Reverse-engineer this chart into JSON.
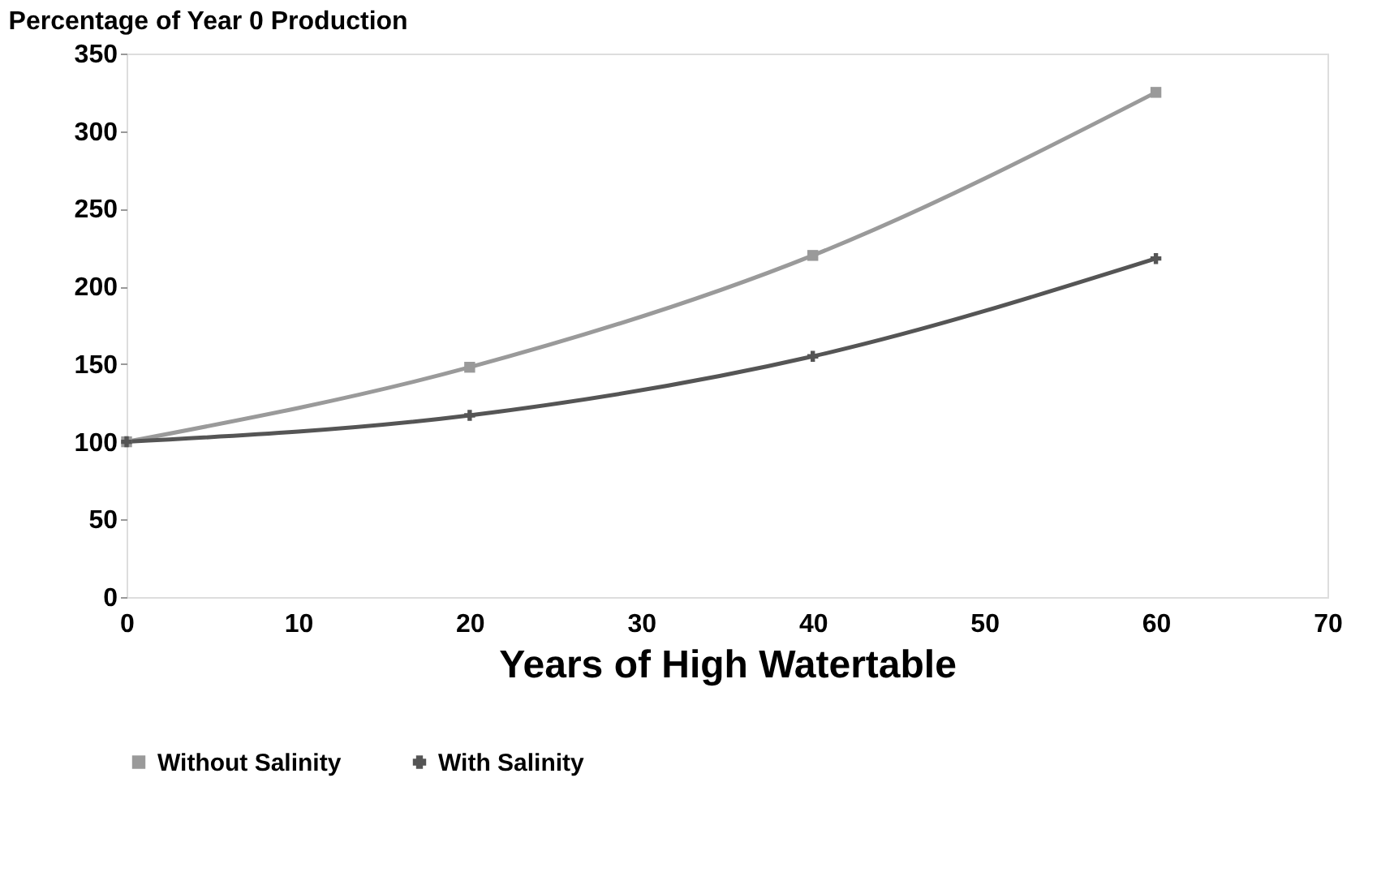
{
  "chart_data": {
    "type": "line",
    "title": "Percentage of Year 0 Production",
    "xlabel": "Years of High Watertable",
    "x": [
      0,
      20,
      40,
      60
    ],
    "series": [
      {
        "name": "Without Salinity",
        "color": "#9a9a9a",
        "marker": "square",
        "values": [
          100,
          148,
          220,
          325
        ]
      },
      {
        "name": "With Salinity",
        "color": "#555555",
        "marker": "cross",
        "values": [
          100,
          117,
          155,
          218
        ]
      }
    ],
    "xlim": [
      0,
      70
    ],
    "xticks": [
      0,
      10,
      20,
      30,
      40,
      50,
      60,
      70
    ],
    "ylim": [
      0,
      350
    ],
    "yticks": [
      0,
      50,
      100,
      150,
      200,
      250,
      300,
      350
    ],
    "grid": false,
    "legend": "bottom",
    "line_style": "solid"
  }
}
